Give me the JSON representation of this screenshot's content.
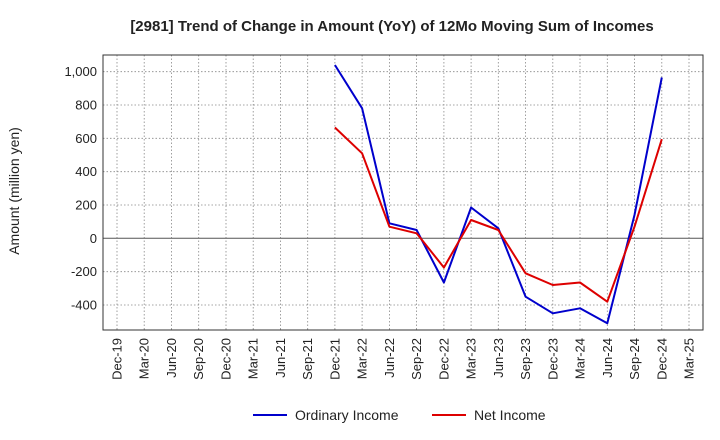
{
  "chart_data": {
    "type": "line",
    "title": "[2981]  Trend of Change in Amount (YoY) of 12Mo Moving Sum of Incomes",
    "xlabel": "",
    "ylabel": "Amount (million yen)",
    "ylim": [
      -550,
      1100
    ],
    "yticks": [
      -400,
      -200,
      0,
      200,
      400,
      600,
      800,
      1000
    ],
    "ytick_labels": [
      "-400",
      "-200",
      "0",
      "200",
      "400",
      "600",
      "800",
      "1,000"
    ],
    "categories": [
      "Dec-19",
      "Mar-20",
      "Jun-20",
      "Sep-20",
      "Dec-20",
      "Mar-21",
      "Jun-21",
      "Sep-21",
      "Dec-21",
      "Mar-22",
      "Jun-22",
      "Sep-22",
      "Dec-22",
      "Mar-23",
      "Jun-23",
      "Sep-23",
      "Dec-23",
      "Mar-24",
      "Jun-24",
      "Sep-24",
      "Dec-24",
      "Mar-25"
    ],
    "grid": true,
    "legend_position": "bottom",
    "series": [
      {
        "name": "Ordinary Income",
        "color": "#0000cc",
        "values": [
          null,
          null,
          null,
          null,
          null,
          null,
          null,
          null,
          1040,
          780,
          90,
          50,
          -265,
          185,
          60,
          -350,
          -450,
          -420,
          -510,
          140,
          965,
          null
        ]
      },
      {
        "name": "Net Income",
        "color": "#dd0000",
        "values": [
          null,
          null,
          null,
          null,
          null,
          null,
          null,
          null,
          665,
          510,
          70,
          30,
          -175,
          110,
          50,
          -210,
          -280,
          -265,
          -380,
          70,
          595,
          null
        ]
      }
    ]
  }
}
